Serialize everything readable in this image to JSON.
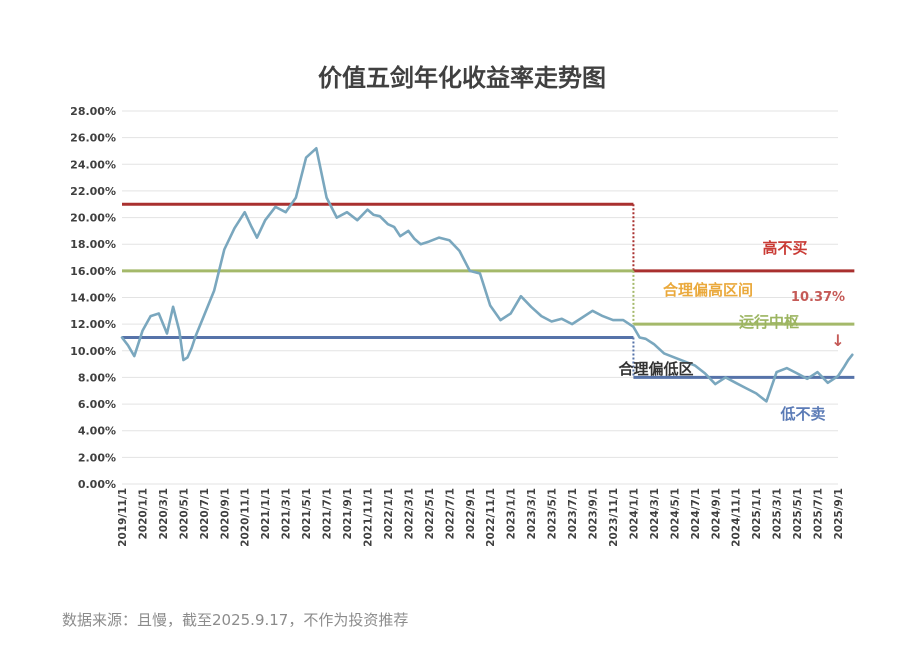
{
  "chart_data": {
    "type": "line",
    "title": "价值五剑年化收益率走势图",
    "ylim": [
      0,
      28
    ],
    "y_ticks": [
      "0.00%",
      "2.00%",
      "4.00%",
      "6.00%",
      "8.00%",
      "10.00%",
      "12.00%",
      "14.00%",
      "16.00%",
      "18.00%",
      "20.00%",
      "22.00%",
      "24.00%",
      "26.00%",
      "28.00%"
    ],
    "x_ticks": [
      "2019/11/1",
      "2020/1/1",
      "2020/3/1",
      "2020/5/1",
      "2020/7/1",
      "2020/9/1",
      "2020/11/1",
      "2021/1/1",
      "2021/3/1",
      "2021/5/1",
      "2021/7/1",
      "2021/9/1",
      "2021/11/1",
      "2022/1/1",
      "2022/3/1",
      "2022/5/1",
      "2022/7/1",
      "2022/9/1",
      "2022/11/1",
      "2023/1/1",
      "2023/3/1",
      "2023/5/1",
      "2023/7/1",
      "2023/9/1",
      "2023/11/1",
      "2024/1/1",
      "2024/3/1",
      "2024/5/1",
      "2024/7/1",
      "2024/9/1",
      "2024/11/1",
      "2025/1/1",
      "2025/3/1",
      "2025/5/1",
      "2025/7/1",
      "2025/9/1"
    ],
    "series": [
      {
        "color": "#7aa7be",
        "x": [
          0,
          0.3,
          0.6,
          1,
          1.4,
          1.8,
          2.2,
          2.5,
          2.8,
          3,
          3.2,
          3.4,
          3.6,
          4,
          4.5,
          5,
          5.5,
          6,
          6.3,
          6.6,
          7,
          7.5,
          8,
          8.5,
          9,
          9.5,
          10,
          10.5,
          11,
          11.5,
          12,
          12.3,
          12.6,
          13,
          13.3,
          13.6,
          14,
          14.3,
          14.6,
          15,
          15.5,
          16,
          16.5,
          17,
          17.5,
          18,
          18.5,
          19,
          19.5,
          20,
          20.5,
          21,
          21.5,
          22,
          22.5,
          23,
          23.5,
          24,
          24.5,
          25,
          25.3,
          25.6,
          26,
          26.5,
          27,
          27.5,
          28,
          28.5,
          29,
          29.5,
          30,
          30.5,
          31,
          31.5,
          32,
          32.5,
          33,
          33.5,
          34,
          34.5,
          35,
          35.3,
          35.5,
          35.7
        ],
        "y": [
          11,
          10.4,
          9.6,
          11.5,
          12.6,
          12.8,
          11.3,
          13.3,
          11.5,
          9.3,
          9.5,
          10.2,
          11.1,
          12.6,
          14.5,
          17.6,
          19.2,
          20.4,
          19.4,
          18.5,
          19.8,
          20.8,
          20.4,
          21.5,
          24.5,
          25.2,
          21.5,
          20,
          20.4,
          19.8,
          20.6,
          20.2,
          20.1,
          19.5,
          19.3,
          18.6,
          19,
          18.4,
          18,
          18.2,
          18.5,
          18.3,
          17.5,
          16,
          15.8,
          13.4,
          12.3,
          12.8,
          14.1,
          13.3,
          12.6,
          12.2,
          12.4,
          12,
          12.5,
          13,
          12.6,
          12.3,
          12.3,
          11.8,
          11,
          10.9,
          10.5,
          9.8,
          9.5,
          9.2,
          8.9,
          8.3,
          7.5,
          8,
          7.6,
          7.2,
          6.8,
          6.2,
          8.4,
          8.7,
          8.3,
          7.9,
          8.4,
          7.6,
          8.1,
          8.8,
          9.3,
          9.7
        ]
      }
    ],
    "reference_lines": [
      {
        "name": "高不买",
        "color": "#a9302f",
        "segments": [
          {
            "x": [
              0,
              25
            ],
            "y": 21
          },
          {
            "x": [
              25,
              35.8
            ],
            "y": 16
          }
        ]
      },
      {
        "name": "运行中枢",
        "color": "#a4b96a",
        "segments": [
          {
            "x": [
              0,
              25
            ],
            "y": 16
          },
          {
            "x": [
              25,
              35.8
            ],
            "y": 12
          }
        ]
      },
      {
        "name": "低不卖",
        "color": "#5673a9",
        "segments": [
          {
            "x": [
              0,
              25
            ],
            "y": 11
          },
          {
            "x": [
              25,
              35.8
            ],
            "y": 8
          }
        ]
      }
    ],
    "annotations": {
      "high": {
        "text": "高不买",
        "color": "#c93b35"
      },
      "upper_zone": {
        "text": "合理偏高区间",
        "color": "#eaa93c"
      },
      "value": {
        "text": "10.37%",
        "color": "#c55a57"
      },
      "center": {
        "text": "运行中枢",
        "color": "#9cb561"
      },
      "arrow": {
        "text": "↓",
        "color": "#c55a57"
      },
      "lower_zone": {
        "text": "合理偏低区",
        "color": "#333333"
      },
      "low": {
        "text": "低不卖",
        "color": "#5b7bb6"
      }
    }
  },
  "footer": {
    "source": "数据来源：且慢，截至2025.9.17，不作为投资推荐"
  }
}
